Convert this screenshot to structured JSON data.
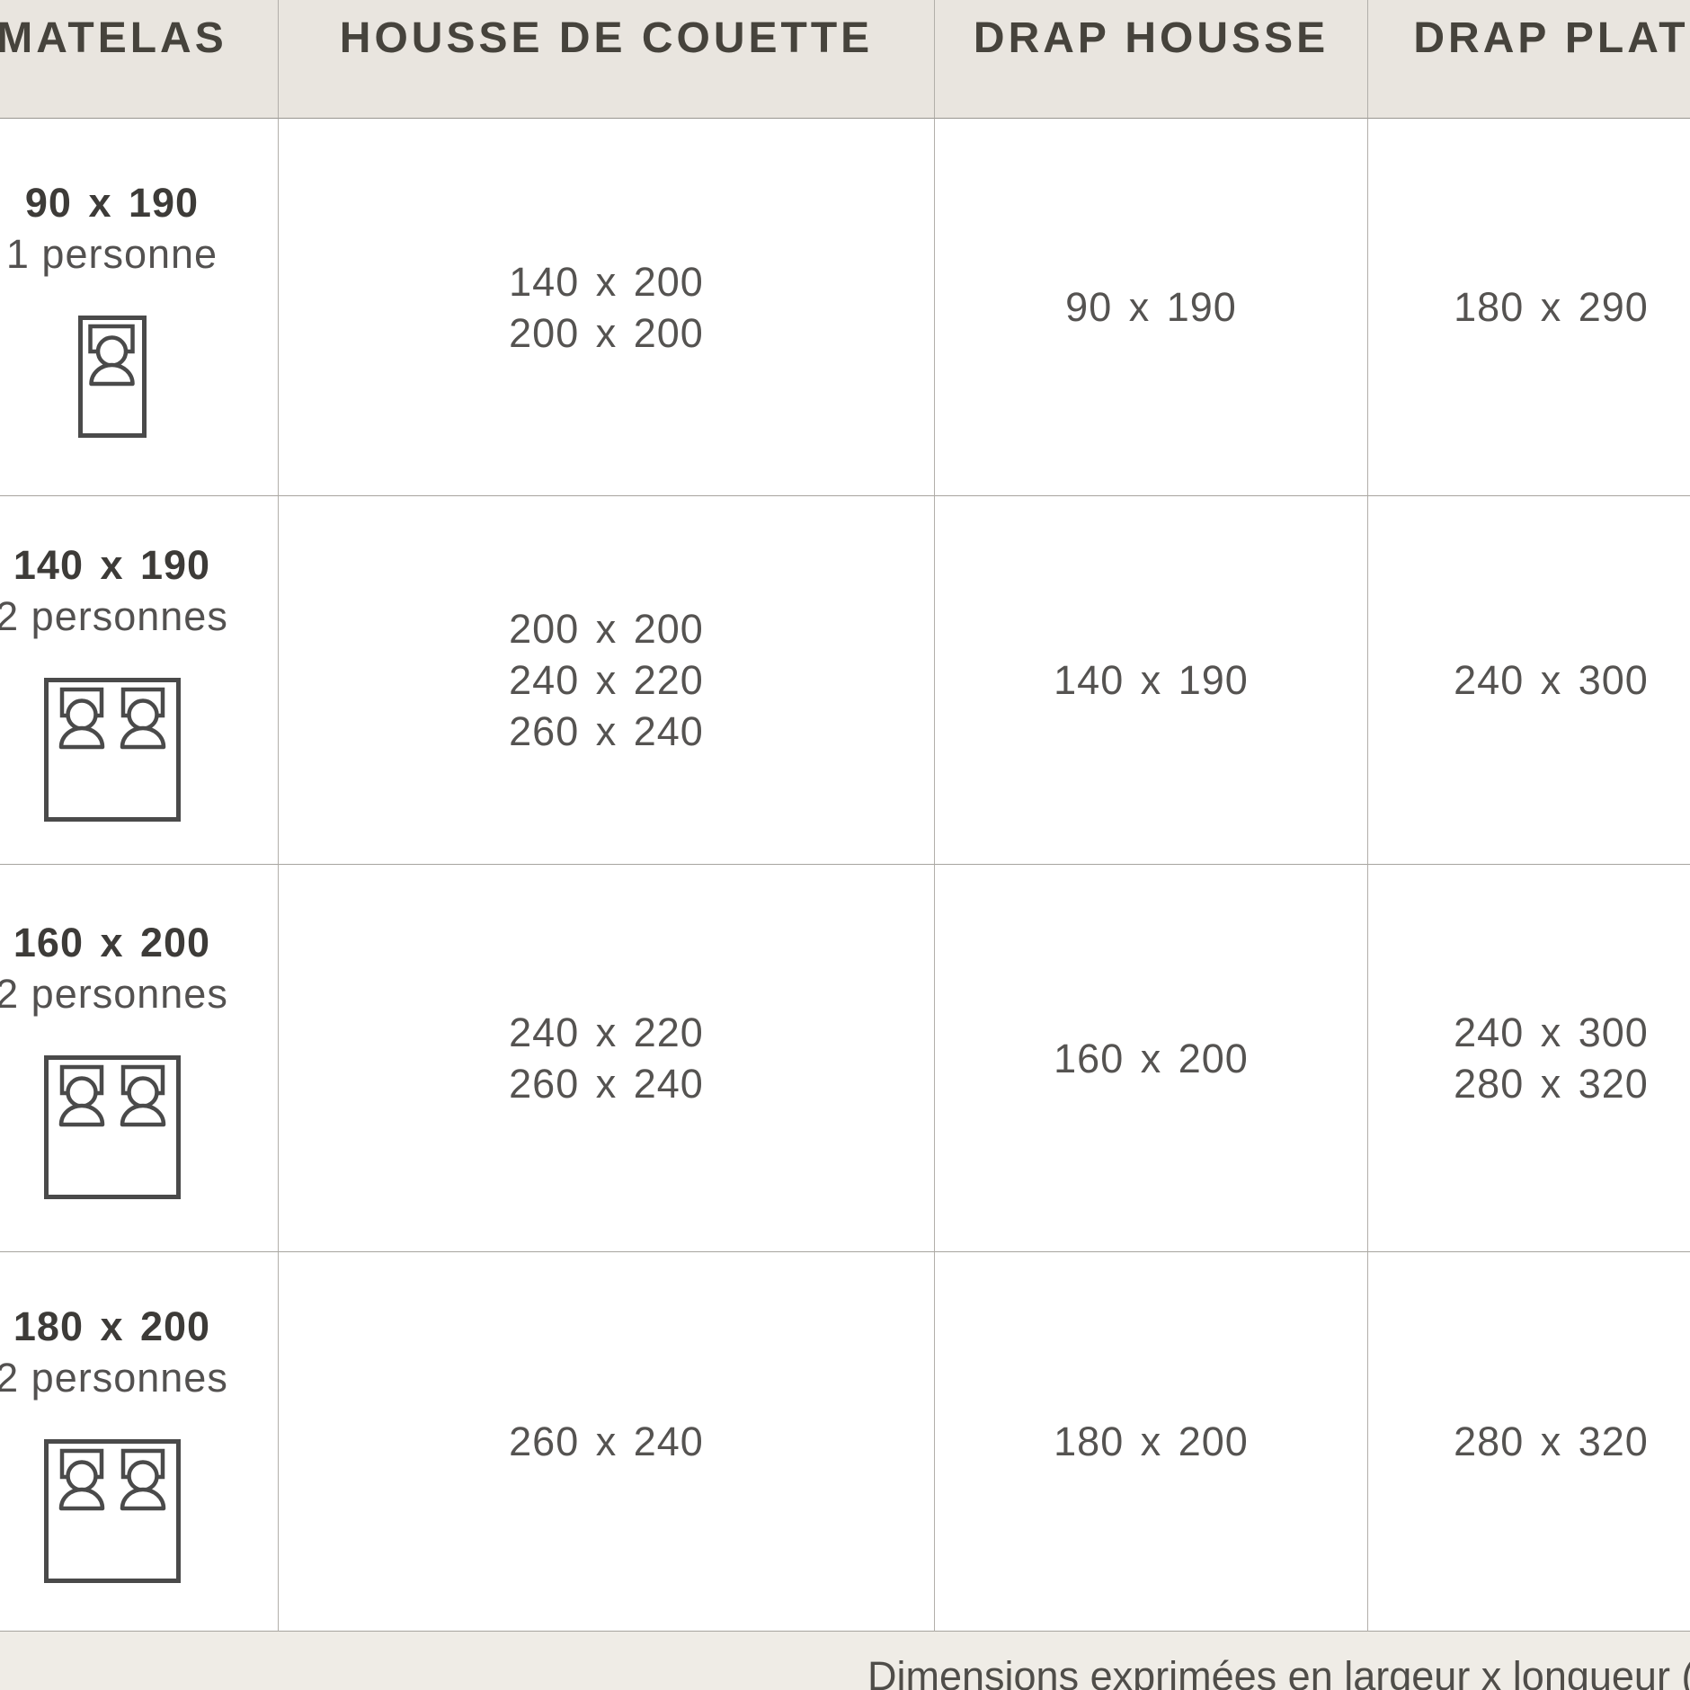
{
  "table": {
    "columns": [
      {
        "label": "MATELAS"
      },
      {
        "label": "HOUSSE DE COUETTE"
      },
      {
        "label": "DRAP HOUSSE"
      },
      {
        "label": "DRAP PLAT"
      }
    ],
    "rows": [
      {
        "matelas_size": "90 x 190",
        "persons": "1 personne",
        "bed_type": "single",
        "housse_de_couette": [
          "140 x 200",
          "200 x 200"
        ],
        "drap_housse": [
          "90 x 190"
        ],
        "drap_plat": [
          "180 x 290"
        ]
      },
      {
        "matelas_size": "140 x 190",
        "persons": "2 personnes",
        "bed_type": "double",
        "housse_de_couette": [
          "200 x 200",
          "240 x 220",
          "260 x 240"
        ],
        "drap_housse": [
          "140 x 190"
        ],
        "drap_plat": [
          "240 x 300"
        ]
      },
      {
        "matelas_size": "160 x 200",
        "persons": "2 personnes",
        "bed_type": "double",
        "housse_de_couette": [
          "240 x 220",
          "260 x 240"
        ],
        "drap_housse": [
          "160 x 200"
        ],
        "drap_plat": [
          "240 x 300",
          "280 x 320"
        ]
      },
      {
        "matelas_size": "180 x 200",
        "persons": "2 personnes",
        "bed_type": "double",
        "housse_de_couette": [
          "260 x 240"
        ],
        "drap_housse": [
          "180 x 200"
        ],
        "drap_plat": [
          "280 x 320"
        ]
      }
    ]
  },
  "footer": {
    "note": "Dimensions exprimées en largeur x longueur (cm)"
  },
  "icons": {
    "single": "single-bed-icon",
    "double": "double-bed-icon"
  },
  "colors": {
    "header_bg": "#e9e5df",
    "footer_bg": "#efece6",
    "border_vertical": "#b2afaa",
    "border_horizontal": "#a7a49f",
    "header_text": "#46433c",
    "bold_text": "#3d3b38",
    "value_text": "#555351",
    "icon_stroke": "#4a4a4a"
  },
  "chart_data": {
    "type": "table",
    "title": "",
    "columns": [
      "MATELAS",
      "HOUSSE DE COUETTE",
      "DRAP HOUSSE",
      "DRAP PLAT"
    ],
    "rows": [
      [
        "90 x 190 (1 personne)",
        "140 x 200 / 200 x 200",
        "90 x 190",
        "180 x 290"
      ],
      [
        "140 x 190 (2 personnes)",
        "200 x 200 / 240 x 220 / 260 x 240",
        "140 x 190",
        "240 x 300"
      ],
      [
        "160 x 200 (2 personnes)",
        "240 x 220 / 260 x 240",
        "160 x 200",
        "240 x 300 / 280 x 320"
      ],
      [
        "180 x 200 (2 personnes)",
        "260 x 240",
        "180 x 200",
        "280 x 320"
      ]
    ],
    "note": "Dimensions exprimées en largeur x longueur (cm)"
  }
}
